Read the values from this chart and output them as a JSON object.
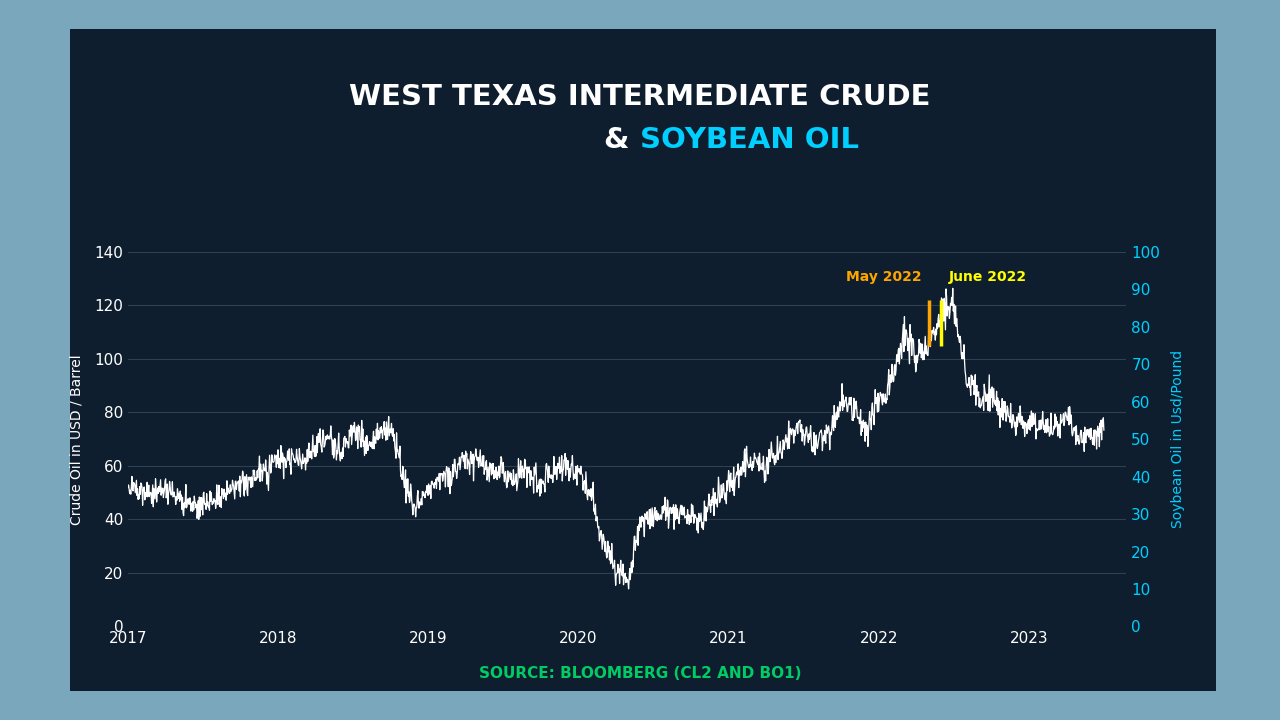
{
  "title_line1": "WEST TEXAS INTERMEDIATE CRUDE",
  "title_line2": "& SOYBEAN OIL",
  "title_color": "#FFFFFF",
  "title_highlight_color": "#00CFFF",
  "ylabel_left": "Crude Oil in USD / Barrel",
  "ylabel_right": "Soybean Oil in Usd/Pound",
  "source_text": "SOURCE: BLOOMBERG (CL2 AND BO1)",
  "source_color": "#00CC66",
  "background_outer": "#7BA7BC",
  "background_panel": "#0F1E2E",
  "plot_bg": "#0F1E2E",
  "grid_color": "#334455",
  "wti_color": "#FFFFFF",
  "soy_color": "#5BB8D4",
  "may2022_color": "#FFA500",
  "june2022_color": "#FFFF00",
  "annot_may": "May 2022",
  "annot_june": "June 2022",
  "ylim_left": [
    0,
    140
  ],
  "ylim_right": [
    0,
    100
  ],
  "yticks_left": [
    0,
    20,
    40,
    60,
    80,
    100,
    120,
    140
  ],
  "yticks_right": [
    0,
    10,
    20,
    30,
    40,
    50,
    60,
    70,
    80,
    90,
    100
  ],
  "title_fontsize": 21,
  "axis_label_fontsize": 10,
  "tick_fontsize": 11,
  "source_fontsize": 11,
  "annot_fontsize": 10
}
